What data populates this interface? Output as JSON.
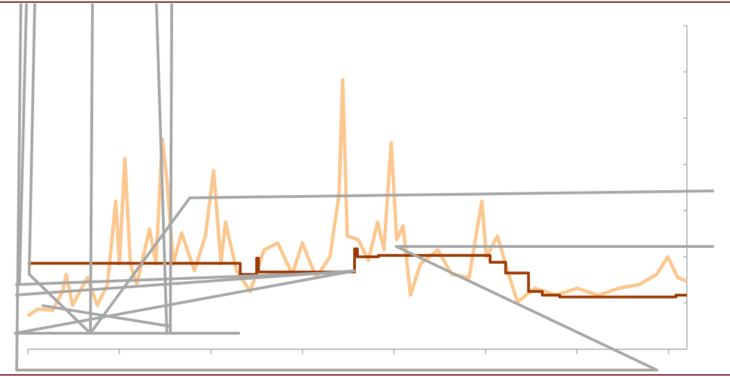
{
  "chart_data": {
    "type": "line",
    "xlim": [
      0,
      7.2
    ],
    "xticks": [
      0,
      1,
      2,
      3,
      4,
      5,
      6,
      7
    ],
    "ylim": [
      0,
      7
    ],
    "yticks": [
      0,
      1,
      2,
      3,
      4,
      5,
      6,
      7
    ],
    "grid": false,
    "series": [
      {
        "color": "#fcc78f",
        "width": 5,
        "x": [
          0,
          0.11,
          0.27,
          0.38,
          0.42,
          0.49,
          0.65,
          0.76,
          0.87,
          0.96,
          1.0,
          1.06,
          1.12,
          1.19,
          1.33,
          1.4,
          1.47,
          1.52,
          1.59,
          1.68,
          1.82,
          1.94,
          2.03,
          2.11,
          2.16,
          2.28,
          2.43,
          2.58,
          2.73,
          2.89,
          3.0,
          3.15,
          3.3,
          3.4,
          3.44,
          3.49,
          3.61,
          3.72,
          3.82,
          3.89,
          3.97,
          4.03,
          4.1,
          4.18,
          4.29,
          4.48,
          4.63,
          4.82,
          4.96,
          5.01,
          5.13,
          5.24,
          5.35,
          5.54,
          5.77,
          6.0,
          6.23,
          6.46,
          6.68,
          6.87,
          6.99,
          7.1,
          7.2
        ],
        "values": [
          0.72,
          0.87,
          0.84,
          1.25,
          1.62,
          0.95,
          1.55,
          0.95,
          1.4,
          3.2,
          1.85,
          4.13,
          1.85,
          1.4,
          2.6,
          1.85,
          4.55,
          3.65,
          1.85,
          2.52,
          1.7,
          2.45,
          3.87,
          1.85,
          2.75,
          1.7,
          1.25,
          2.15,
          2.3,
          1.62,
          2.3,
          1.55,
          2.0,
          3.35,
          5.83,
          2.45,
          2.37,
          1.92,
          2.75,
          2.15,
          4.47,
          2.37,
          2.67,
          1.17,
          1.85,
          2.15,
          1.62,
          1.55,
          3.2,
          2.0,
          2.45,
          1.7,
          1.02,
          1.32,
          1.17,
          1.32,
          1.17,
          1.32,
          1.4,
          1.62,
          2.0,
          1.55,
          1.47
        ]
      },
      {
        "color": "#9c3a06",
        "width": 4,
        "x": [
          0,
          2.32,
          2.32,
          2.5,
          2.5,
          2.52,
          2.52,
          3.57,
          3.57,
          3.6,
          3.6,
          3.83,
          3.83,
          5.05,
          5.05,
          5.22,
          5.22,
          5.47,
          5.47,
          5.62,
          5.62,
          5.81,
          5.81,
          7.08,
          7.08,
          7.2
        ],
        "values": [
          1.86,
          1.86,
          1.62,
          1.62,
          1.97,
          1.97,
          1.67,
          1.67,
          2.17,
          2.17,
          2.0,
          2.0,
          2.03,
          2.03,
          1.88,
          1.88,
          1.65,
          1.65,
          1.25,
          1.25,
          1.17,
          1.17,
          1.13,
          1.13,
          1.17,
          1.17
        ]
      }
    ]
  }
}
